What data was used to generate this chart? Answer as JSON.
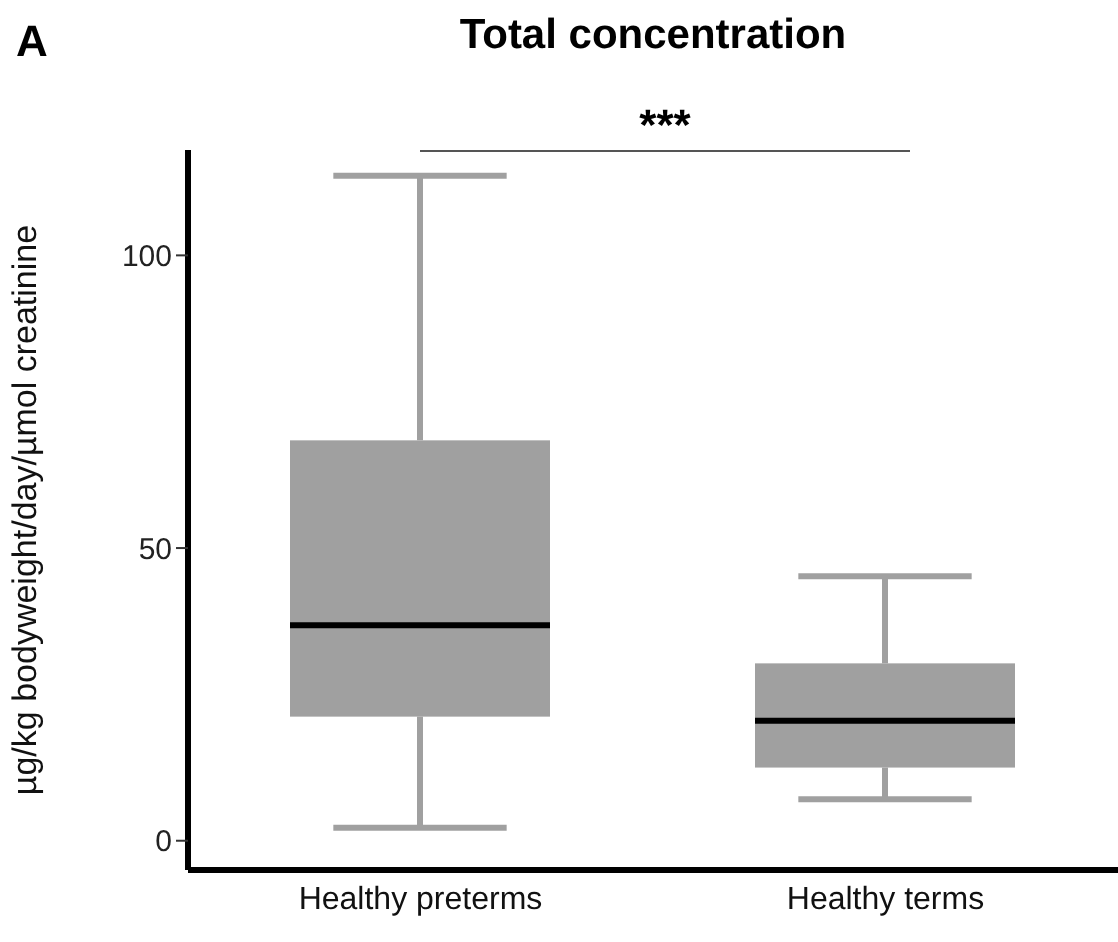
{
  "chart_data": {
    "type": "box",
    "title": "Total concentration",
    "ylabel": "µg/kg bodyweight/day/µmol creatinine",
    "categories": [
      "Healthy preterms",
      "Healthy terms"
    ],
    "color": "#a0a0a0",
    "boxes": [
      {
        "low": 2.2,
        "q1": 21.2,
        "median": 36.8,
        "q3": 68.4,
        "high": 113.6
      },
      {
        "low": 7.1,
        "q1": 12.5,
        "median": 20.5,
        "q3": 30.3,
        "high": 45.2
      }
    ],
    "ylim": [
      -5,
      118
    ],
    "yticks": [
      0,
      50,
      100
    ],
    "annotations": [
      "A",
      "***"
    ]
  }
}
